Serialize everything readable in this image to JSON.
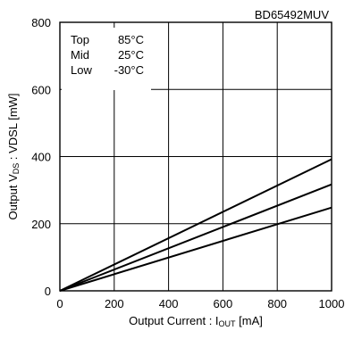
{
  "chart_data": {
    "type": "line",
    "device": "BD65492MUV",
    "xlabel": "Output Current : I",
    "xlabel_sub": "OUT",
    "xlabel_unit": " [mA]",
    "ylabel": "Output V",
    "ylabel_sub": "DS",
    "ylabel_rest": " : VDSL [mW]",
    "xlim": [
      0,
      1000
    ],
    "ylim": [
      0,
      800
    ],
    "x_ticks": [
      0,
      200,
      400,
      600,
      800,
      1000
    ],
    "y_ticks": [
      0,
      200,
      400,
      600,
      800
    ],
    "x_tick_labels": [
      "0",
      "200",
      "400",
      "600",
      "800",
      "1000"
    ],
    "y_tick_labels": [
      "0",
      "200",
      "400",
      "600",
      "800"
    ],
    "grid": true,
    "legend_lines": [
      {
        "name": "Top",
        "value": "85°C"
      },
      {
        "name": "Mid",
        "value": "25°C"
      },
      {
        "name": "Low",
        "value": "-30°C"
      }
    ],
    "series": [
      {
        "name": "Top",
        "x": [
          0,
          1000
        ],
        "y": [
          0,
          392
        ]
      },
      {
        "name": "Mid",
        "x": [
          0,
          1000
        ],
        "y": [
          0,
          317
        ]
      },
      {
        "name": "Low",
        "x": [
          0,
          1000
        ],
        "y": [
          0,
          248
        ]
      }
    ],
    "colors": {
      "line": "#000000",
      "grid": "#000000",
      "background": "#ffffff"
    }
  }
}
